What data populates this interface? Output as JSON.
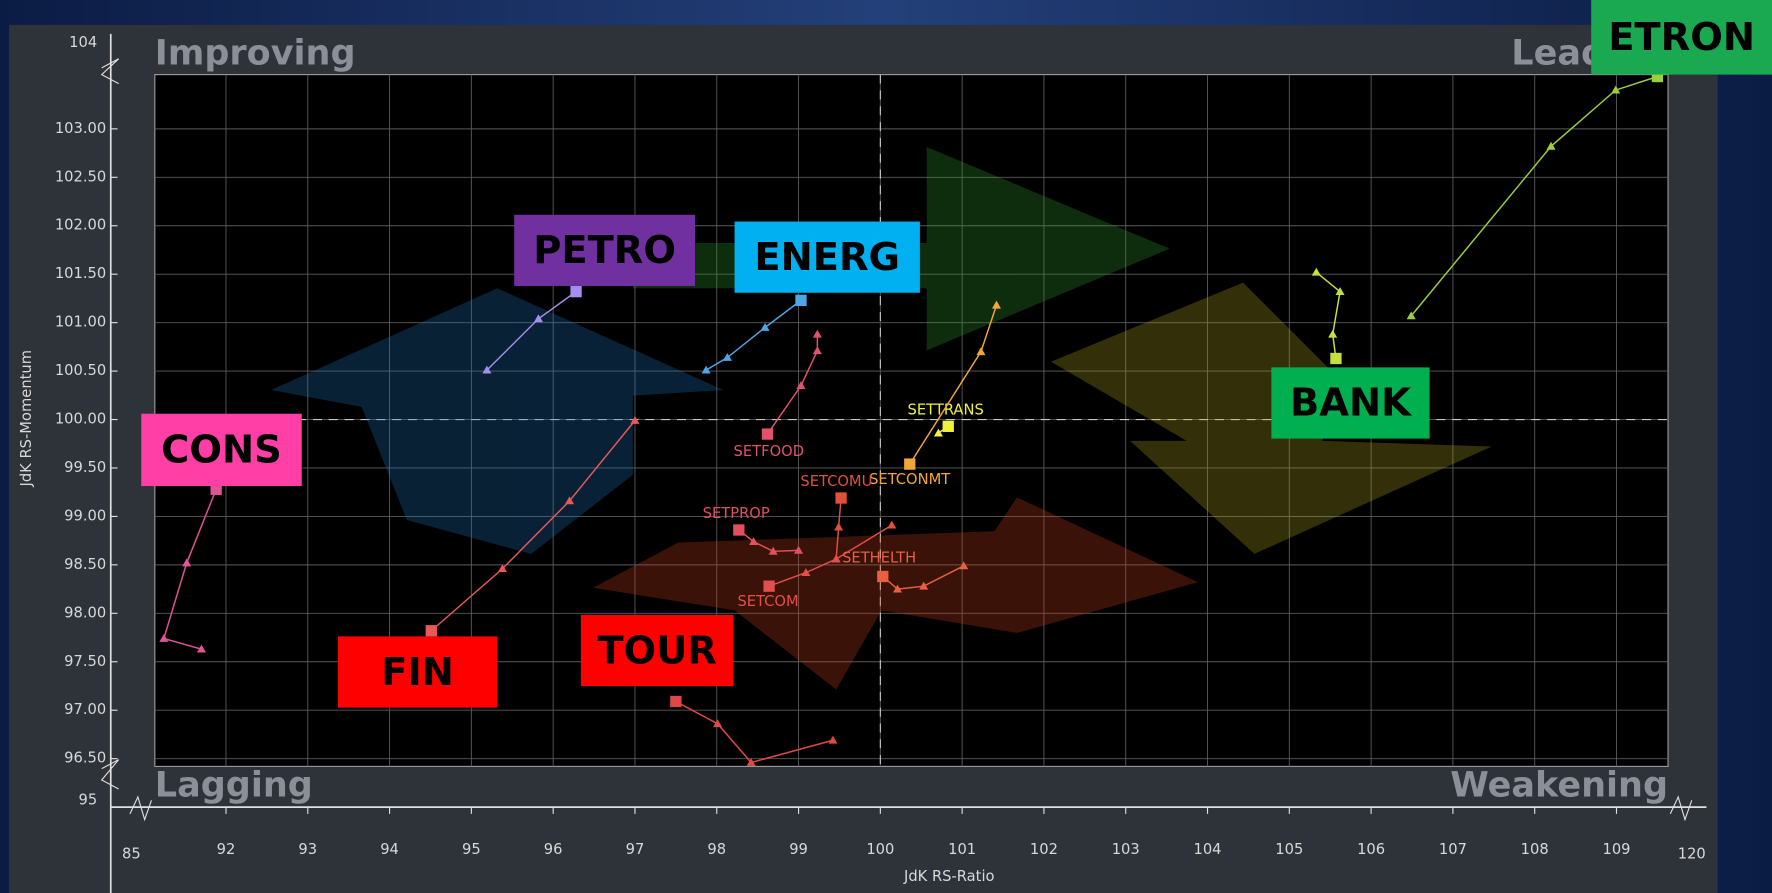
{
  "chart_data": {
    "type": "rrg",
    "x_label": "JdK RS-Ratio",
    "y_label": "JdK RS-Momentum",
    "quadrants": [
      "Improving",
      "Leading",
      "Lagging",
      "Weakening"
    ],
    "xlim": [
      91.13,
      109.63
    ],
    "ylim": [
      96.42,
      103.56
    ],
    "xticks": [
      92,
      93,
      94,
      95,
      96,
      97,
      98,
      99,
      100,
      101,
      102,
      103,
      104,
      105,
      106,
      107,
      108,
      109
    ],
    "yticks": [
      {
        "value": 96.5,
        "label": "96.50"
      },
      {
        "value": 97,
        "label": "97.00"
      },
      {
        "value": 97.5,
        "label": "97.50"
      },
      {
        "value": 98,
        "label": "98.00"
      },
      {
        "value": 98.5,
        "label": "98.50"
      },
      {
        "value": 99,
        "label": "99.00"
      },
      {
        "value": 99.5,
        "label": "99.50"
      },
      {
        "value": 100,
        "label": "100.00"
      },
      {
        "value": 100.5,
        "label": "100.50"
      },
      {
        "value": 101,
        "label": "101.00"
      },
      {
        "value": 101.5,
        "label": "101.50"
      },
      {
        "value": 102,
        "label": "102.00"
      },
      {
        "value": 102.5,
        "label": "102.50"
      },
      {
        "value": 103,
        "label": "103.00"
      }
    ],
    "x_break_labels": [
      85,
      120
    ],
    "y_break_labels": [
      95,
      104
    ],
    "reference_lines": {
      "x": 100,
      "y": 100
    },
    "grid": true,
    "series": [
      {
        "name": "ETRON",
        "color": "#9ccf3c",
        "callout_color": "#1aa850",
        "x": [
          106.49,
          108.2,
          108.99,
          109.5
        ],
        "y": [
          101.07,
          102.82,
          103.4,
          103.54
        ]
      },
      {
        "name": "BANK",
        "color": "#c5e03a",
        "callout_color": "#00b050",
        "x": [
          105.33,
          105.62,
          105.53,
          105.57
        ],
        "y": [
          101.52,
          101.32,
          100.88,
          100.63
        ]
      },
      {
        "name": "PETRO",
        "color": "#a58cf0",
        "callout_color": "#7030a0",
        "x": [
          95.19,
          95.82,
          96.28
        ],
        "y": [
          100.51,
          101.04,
          101.32
        ]
      },
      {
        "name": "ENERG",
        "color": "#4ea6e6",
        "callout_color": "#00b0f0",
        "x": [
          97.87,
          98.13,
          98.59,
          99.03
        ],
        "y": [
          100.51,
          100.64,
          100.95,
          101.23
        ]
      },
      {
        "name": "SETFOOD",
        "color": "#e0536a",
        "x": [
          99.23,
          99.23,
          99.03,
          98.62
        ],
        "y": [
          100.88,
          100.71,
          100.35,
          99.85
        ]
      },
      {
        "name": "SETTRANS",
        "color": "#f0f040",
        "x": [
          100.71,
          100.83
        ],
        "y": [
          99.86,
          99.93
        ]
      },
      {
        "name": "SETCONMT",
        "color": "#f2a838",
        "x": [
          101.42,
          101.23,
          100.36
        ],
        "y": [
          101.18,
          100.7,
          99.54
        ]
      },
      {
        "name": "SETCOMU",
        "color": "#e0503c",
        "x": [
          100.14,
          99.46,
          99.49,
          99.52
        ],
        "y": [
          98.91,
          98.56,
          98.89,
          99.19
        ]
      },
      {
        "name": "SETPROP",
        "color": "#e25060",
        "x": [
          99.0,
          98.69,
          98.45,
          98.27
        ],
        "y": [
          98.65,
          98.64,
          98.74,
          98.86
        ]
      },
      {
        "name": "SETHELTH",
        "color": "#e86040",
        "x": [
          101.02,
          100.53,
          100.21,
          100.03
        ],
        "y": [
          98.49,
          98.28,
          98.25,
          98.38
        ]
      },
      {
        "name": "SETCOM",
        "color": "#e0504c",
        "x": [
          99.46,
          99.09,
          98.64
        ],
        "y": [
          98.56,
          98.42,
          98.28
        ]
      },
      {
        "name": "FIN",
        "color": "#e85a5a",
        "callout_color": "#ff0000",
        "x": [
          97.0,
          96.2,
          95.38,
          94.51
        ],
        "y": [
          99.99,
          99.16,
          98.46,
          97.82
        ]
      },
      {
        "name": "CONS",
        "color": "#e05494",
        "callout_color": "#ff3fa6",
        "x": [
          91.7,
          91.24,
          91.52,
          91.88
        ],
        "y": [
          97.63,
          97.74,
          98.52,
          99.28
        ]
      },
      {
        "name": "TOUR",
        "color": "#e04848",
        "callout_color": "#ff0000",
        "x": [
          99.42,
          98.42,
          98.01,
          97.5
        ],
        "y": [
          96.69,
          96.46,
          96.86,
          97.09
        ]
      }
    ]
  }
}
